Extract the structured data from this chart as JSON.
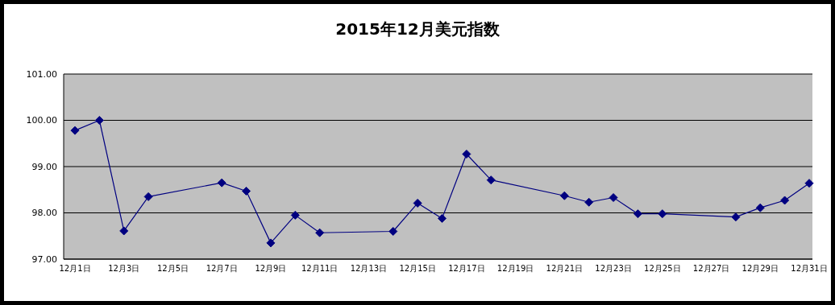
{
  "chart_data": {
    "type": "line",
    "title": "2015年12月美元指数",
    "categories": [
      "12月1日",
      null,
      "12月3日",
      null,
      "12月5日",
      null,
      "12月7日",
      null,
      "12月9日",
      null,
      "12月11日",
      null,
      "12月13日",
      null,
      "12月15日",
      null,
      "12月17日",
      null,
      "12月19日",
      null,
      "12月21日",
      null,
      "12月23日",
      null,
      "12月25日",
      null,
      "12月27日",
      null,
      "12月29日",
      null,
      "12月31日"
    ],
    "series": [
      {
        "color": "#000080",
        "values": [
          99.78,
          100.0,
          97.61,
          98.35,
          null,
          null,
          98.65,
          98.47,
          97.35,
          97.95,
          97.57,
          null,
          null,
          97.6,
          98.21,
          97.88,
          99.27,
          98.71,
          null,
          null,
          98.37,
          98.23,
          98.33,
          97.98,
          97.98,
          null,
          null,
          97.91,
          98.11,
          98.27,
          98.64
        ]
      }
    ],
    "ylim": [
      97,
      101
    ],
    "yticks": [
      {
        "value": 97,
        "label": "97.00"
      },
      {
        "value": 98,
        "label": "98.00"
      },
      {
        "value": 99,
        "label": "99.00"
      },
      {
        "value": 100,
        "label": "100.00"
      },
      {
        "value": 101,
        "label": "101.00"
      }
    ],
    "grid": "y",
    "marker": "diamond",
    "line_style": "solid",
    "legend": false
  }
}
